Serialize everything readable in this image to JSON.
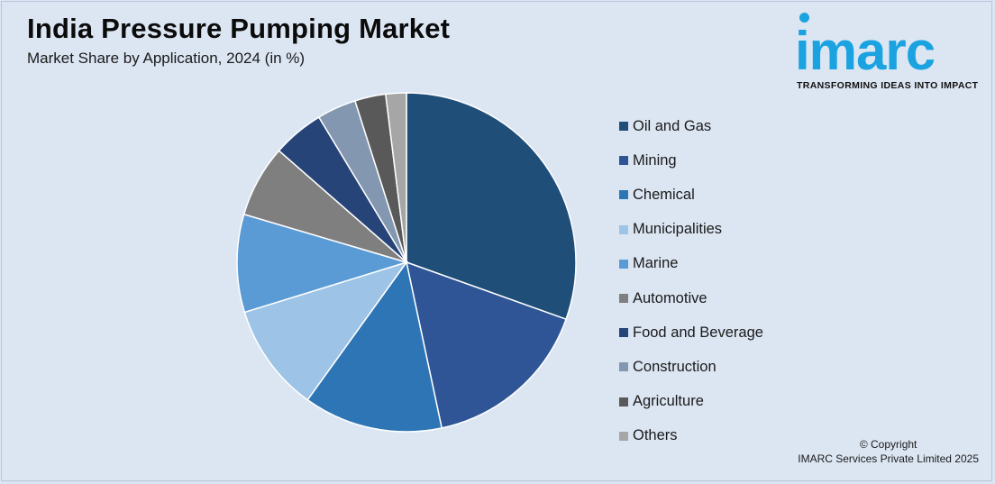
{
  "header": {
    "title": "India Pressure Pumping Market",
    "subtitle": "Market Share by Application, 2024 (in %)"
  },
  "logo": {
    "word": "imarc",
    "tagline": "TRANSFORMING IDEAS INTO IMPACT",
    "color": "#1aa3e0"
  },
  "footer": {
    "copyright_line1": "© Copyright",
    "copyright_line2": "IMARC Services Private Limited 2025"
  },
  "chart_data": {
    "type": "pie",
    "title": "India Pressure Pumping Market",
    "subtitle": "Market Share by Application, 2024 (in %)",
    "legend_position": "right",
    "start_angle": "12 o'clock, clockwise",
    "categories": [
      "Oil and Gas",
      "Mining",
      "Chemical",
      "Municipalities",
      "Marine",
      "Automotive",
      "Food and Beverage",
      "Construction",
      "Agriculture",
      "Others"
    ],
    "values": [
      31,
      16.5,
      13.5,
      10.5,
      9.5,
      7,
      5,
      3.8,
      3,
      2
    ],
    "colors": [
      "#1f4e79",
      "#2f5597",
      "#2e75b6",
      "#9dc3e6",
      "#5b9bd5",
      "#7f7f7f",
      "#264478",
      "#8497b0",
      "#595959",
      "#a6a6a6"
    ]
  }
}
